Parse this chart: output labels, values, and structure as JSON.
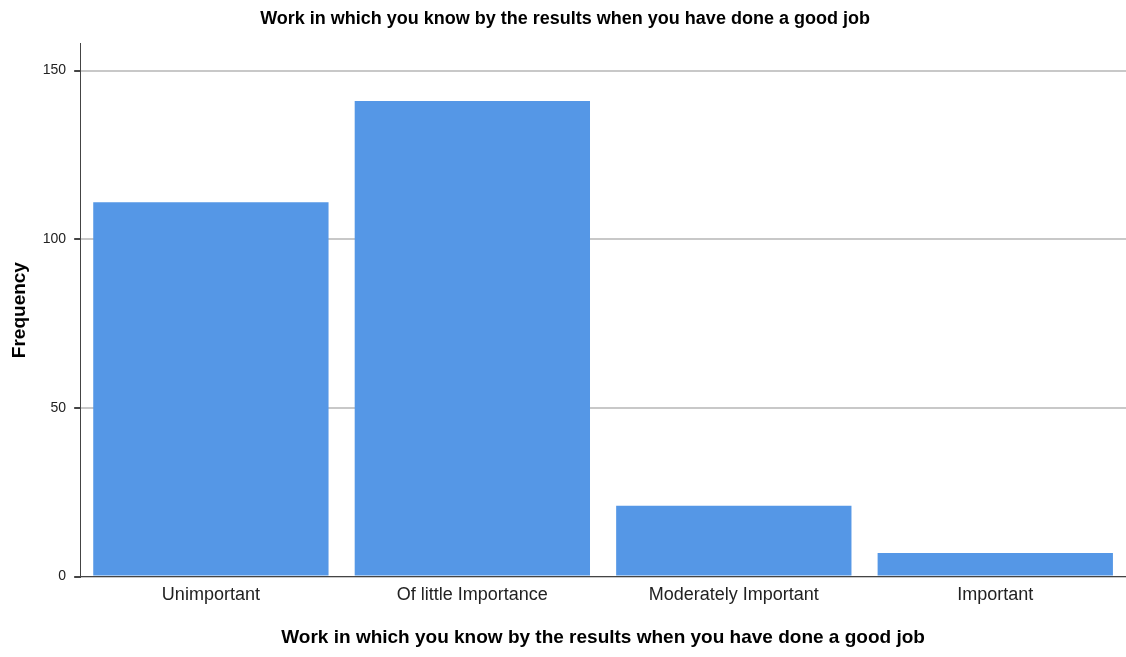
{
  "chart_data": {
    "type": "bar",
    "title": "Work in which you know by the results when you have done a good job",
    "xlabel": "Work in which you know by the results when you have done a good job",
    "ylabel": "Frequency",
    "categories": [
      "Unimportant",
      "Of little Importance",
      "Moderately Important",
      "Important"
    ],
    "values": [
      111,
      141,
      21,
      7
    ],
    "color": "#5597e6",
    "ylim": [
      0,
      158
    ],
    "yticks": [
      0,
      50,
      100,
      150
    ],
    "grid": "y",
    "legend": false
  }
}
